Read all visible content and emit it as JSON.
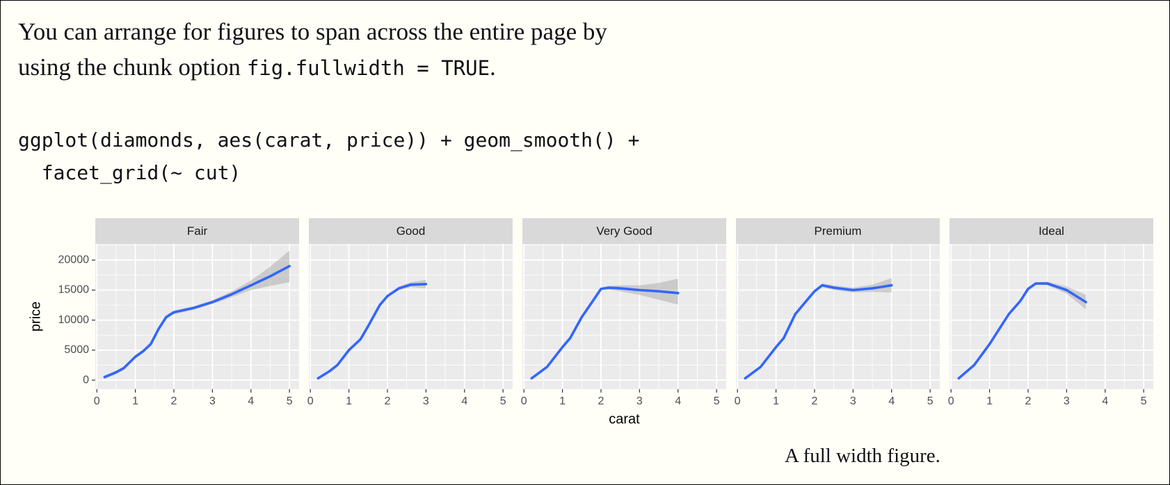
{
  "paragraph": {
    "lines": [
      "You can arrange for figures to span across the entire page by",
      "using the chunk option"
    ],
    "code": "fig.fullwidth = TRUE",
    "end": "."
  },
  "code_block": [
    "ggplot(diamonds, aes(carat, price)) + geom_smooth() +",
    "  facet_grid(~ cut)"
  ],
  "chart_data": {
    "type": "line",
    "x_label": "carat",
    "y_label": "price",
    "xlim": [
      -0.04,
      5.25
    ],
    "ylim": [
      -1500,
      22700
    ],
    "xticks": [
      0,
      1,
      2,
      3,
      4,
      5
    ],
    "yticks": [
      0,
      5000,
      10000,
      15000,
      20000
    ],
    "x_minor_ticks": [
      0.5,
      1.5,
      2.5,
      3.5,
      4.5
    ],
    "y_minor_ticks": [
      2500,
      7500,
      12500,
      17500,
      22500
    ],
    "grid": true,
    "band_color": "#999999",
    "series": [
      {
        "name": "Fair",
        "color": "#3366ff",
        "x": [
          0.2,
          0.5,
          0.7,
          1.0,
          1.2,
          1.4,
          1.6,
          1.8,
          2.0,
          2.5,
          3.0,
          3.5,
          4.0,
          4.5,
          5.0
        ],
        "values": [
          500,
          1300,
          2000,
          3900,
          4800,
          6000,
          8500,
          10500,
          11300,
          12000,
          13000,
          14300,
          15800,
          17300,
          19000
        ],
        "lower": [
          200,
          1000,
          1700,
          3600,
          4500,
          5700,
          8200,
          10200,
          11000,
          11700,
          12700,
          13800,
          15000,
          15700,
          16300
        ],
        "upper": [
          800,
          1600,
          2300,
          4200,
          5100,
          6300,
          8800,
          10800,
          11600,
          12300,
          13300,
          14800,
          16600,
          18900,
          21600
        ]
      },
      {
        "name": "Good",
        "color": "#3366ff",
        "x": [
          0.2,
          0.5,
          0.7,
          1.0,
          1.3,
          1.5,
          1.8,
          2.0,
          2.3,
          2.6,
          3.0
        ],
        "values": [
          300,
          1500,
          2500,
          5000,
          6800,
          9000,
          12500,
          14000,
          15300,
          15900,
          16000
        ],
        "lower": [
          100,
          1300,
          2300,
          4800,
          6600,
          8800,
          12300,
          13800,
          15000,
          15500,
          15300
        ],
        "upper": [
          500,
          1700,
          2700,
          5200,
          7000,
          9200,
          12700,
          14200,
          15600,
          16300,
          16700
        ]
      },
      {
        "name": "Very Good",
        "color": "#3366ff",
        "x": [
          0.2,
          0.6,
          1.0,
          1.2,
          1.5,
          1.8,
          2.0,
          2.2,
          2.5,
          3.0,
          3.5,
          4.0
        ],
        "values": [
          300,
          2200,
          5500,
          7000,
          10500,
          13300,
          15200,
          15400,
          15300,
          15000,
          14800,
          14500
        ],
        "lower": [
          100,
          2000,
          5300,
          6800,
          10300,
          13100,
          15000,
          15100,
          14800,
          14200,
          13400,
          12600
        ],
        "upper": [
          500,
          2400,
          5700,
          7200,
          10700,
          13500,
          15400,
          15700,
          15800,
          15800,
          16200,
          16900
        ]
      },
      {
        "name": "Premium",
        "color": "#3366ff",
        "x": [
          0.2,
          0.6,
          1.0,
          1.2,
          1.5,
          1.8,
          2.0,
          2.2,
          2.5,
          3.0,
          3.5,
          4.0
        ],
        "values": [
          300,
          2200,
          5500,
          7000,
          11000,
          13300,
          14800,
          15800,
          15400,
          15000,
          15300,
          15800
        ],
        "lower": [
          100,
          2000,
          5300,
          6800,
          10800,
          13100,
          14600,
          15500,
          15000,
          14600,
          14700,
          14600
        ],
        "upper": [
          500,
          2400,
          5700,
          7200,
          11200,
          13500,
          15000,
          16100,
          15800,
          15400,
          15900,
          17000
        ]
      },
      {
        "name": "Ideal",
        "color": "#3366ff",
        "x": [
          0.2,
          0.6,
          1.0,
          1.2,
          1.5,
          1.8,
          2.0,
          2.2,
          2.5,
          3.0,
          3.5
        ],
        "values": [
          300,
          2500,
          6000,
          8000,
          11000,
          13200,
          15200,
          16100,
          16100,
          15000,
          13000
        ],
        "lower": [
          100,
          2300,
          5800,
          7800,
          10800,
          13000,
          15000,
          15900,
          15800,
          14400,
          11800
        ],
        "upper": [
          500,
          2700,
          6200,
          8200,
          11200,
          13400,
          15400,
          16300,
          16400,
          15600,
          14200
        ]
      }
    ]
  },
  "caption": "A full width figure."
}
